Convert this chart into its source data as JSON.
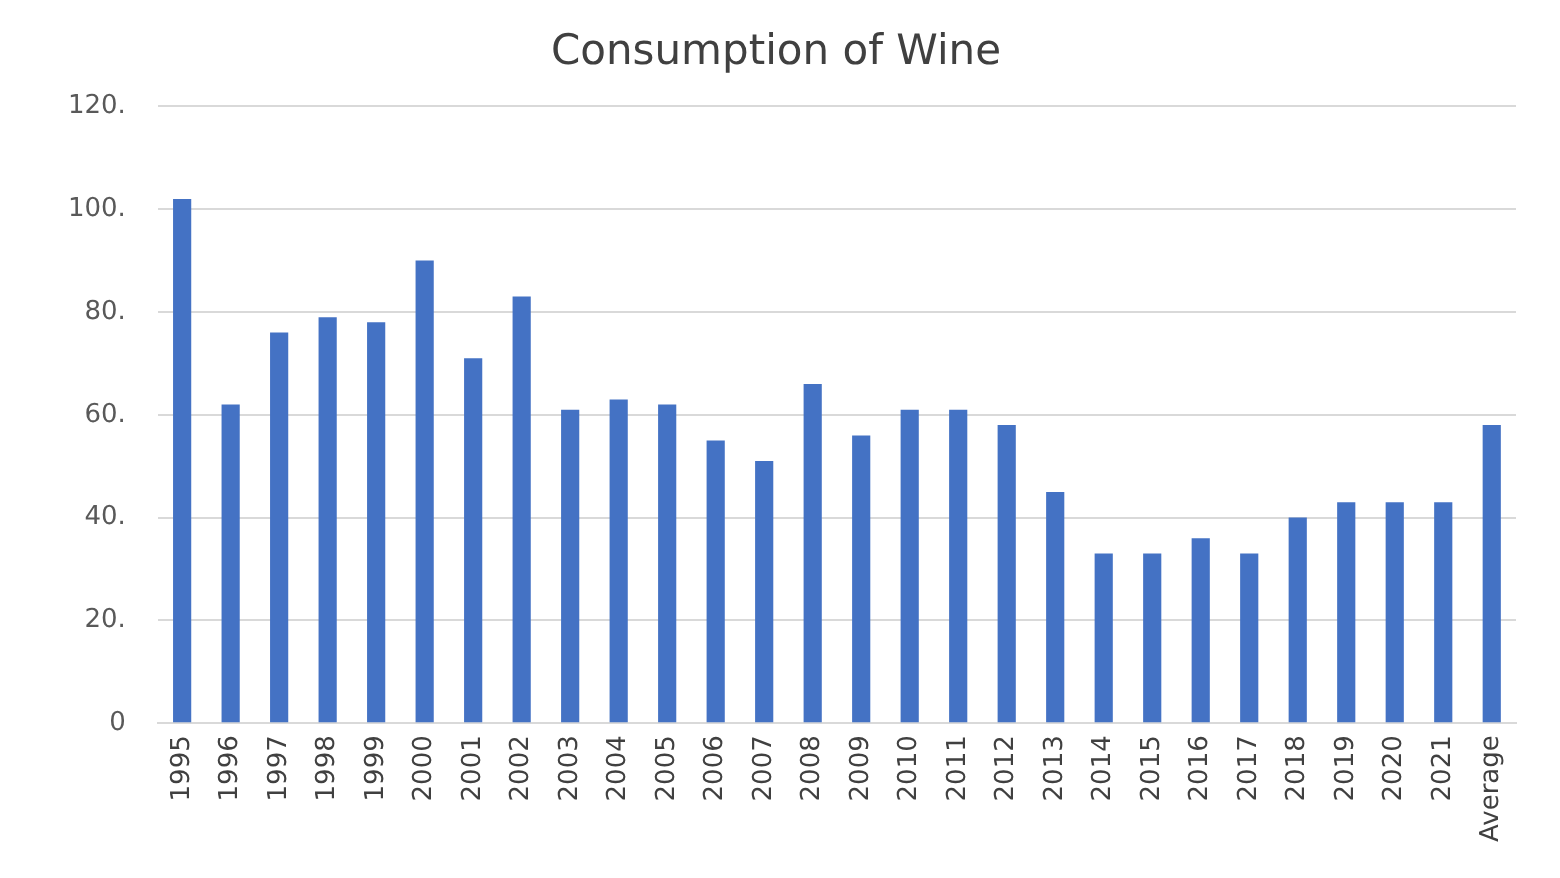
{
  "chart_data": {
    "type": "bar",
    "title": "Consumption of Wine",
    "categories": [
      "1995",
      "1996",
      "1997",
      "1998",
      "1999",
      "2000",
      "2001",
      "2002",
      "2003",
      "2004",
      "2005",
      "2006",
      "2007",
      "2008",
      "2009",
      "2010",
      "2011",
      "2012",
      "2013",
      "2014",
      "2015",
      "2016",
      "2017",
      "2018",
      "2019",
      "2020",
      "2021",
      "Average"
    ],
    "values": [
      102,
      62,
      76,
      79,
      78,
      90,
      71,
      83,
      61,
      63,
      62,
      55,
      51,
      66,
      56,
      61,
      61,
      58,
      45,
      33,
      33,
      36,
      33,
      40,
      43,
      43,
      43,
      58
    ],
    "color": "#4472c4",
    "ylim": [
      0,
      120
    ],
    "yticks": [
      0,
      {
        "value": 20,
        "label": "20."
      },
      {
        "value": 40,
        "label": "40."
      },
      {
        "value": 60,
        "label": "60."
      },
      {
        "value": 80,
        "label": "80."
      },
      {
        "value": 100,
        "label": "100."
      },
      {
        "value": 120,
        "label": "120."
      }
    ],
    "grid": "y"
  }
}
